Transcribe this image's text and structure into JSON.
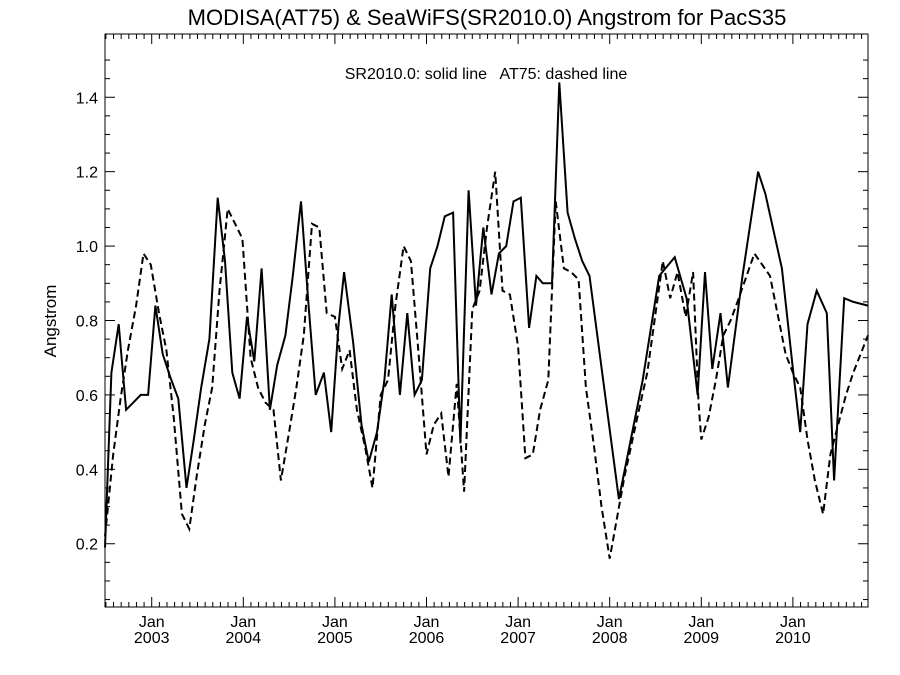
{
  "chart_data": {
    "type": "line",
    "title": "MODISA(AT75) & SeaWiFS(SR2010.0)  Angstrom for PacS35",
    "ylabel": "Angstrom",
    "xlabel": "",
    "annotation": "SR2010.0: solid line   AT75: dashed line",
    "ylim": [
      0.03,
      1.57
    ],
    "xlim": [
      2002.49,
      2010.82
    ],
    "yticks": [
      0.2,
      0.4,
      0.6,
      0.8,
      1.0,
      1.2,
      1.4
    ],
    "ytick_labels": [
      "0.2",
      "0.4",
      "0.6",
      "0.8",
      "1.0",
      "1.2",
      "1.4"
    ],
    "xticks": [
      {
        "x": 2003.0,
        "top": "Jan",
        "bottom": "2003"
      },
      {
        "x": 2004.0,
        "top": "Jan",
        "bottom": "2004"
      },
      {
        "x": 2005.0,
        "top": "Jan",
        "bottom": "2005"
      },
      {
        "x": 2006.0,
        "top": "Jan",
        "bottom": "2006"
      },
      {
        "x": 2007.0,
        "top": "Jan",
        "bottom": "2007"
      },
      {
        "x": 2008.0,
        "top": "Jan",
        "bottom": "2008"
      },
      {
        "x": 2009.0,
        "top": "Jan",
        "bottom": "2009"
      },
      {
        "x": 2010.0,
        "top": "Jan",
        "bottom": "2010"
      }
    ],
    "grid": false,
    "series": [
      {
        "name": "SR2010.0",
        "style": "solid",
        "color": "#000000",
        "x": [
          2002.49,
          2002.56,
          2002.64,
          2002.72,
          2002.8,
          2002.88,
          2002.96,
          2003.04,
          2003.12,
          2003.2,
          2003.29,
          2003.38,
          2003.46,
          2003.54,
          2003.63,
          2003.72,
          2003.8,
          2003.88,
          2003.96,
          2004.04,
          2004.12,
          2004.2,
          2004.29,
          2004.37,
          2004.46,
          2004.54,
          2004.63,
          2004.71,
          2004.79,
          2004.88,
          2004.96,
          2005.04,
          2005.1,
          2005.2,
          2005.29,
          2005.37,
          2005.46,
          2005.54,
          2005.62,
          2005.71,
          2005.79,
          2005.87,
          2005.95,
          2006.04,
          2006.12,
          2006.2,
          2006.29,
          2006.37,
          2006.46,
          2006.54,
          2006.62,
          2006.71,
          2006.79,
          2006.87,
          2006.95,
          2007.03,
          2007.12,
          2007.2,
          2007.27,
          2007.37,
          2007.45,
          2007.54,
          2007.62,
          2007.7,
          2007.78,
          2007.95,
          2008.1,
          2008.36,
          2008.54,
          2008.71,
          2008.84,
          2008.96,
          2009.04,
          2009.12,
          2009.21,
          2009.29,
          2009.45,
          2009.62,
          2009.7,
          2009.88,
          2010.0,
          2010.08,
          2010.16,
          2010.26,
          2010.37,
          2010.45,
          2010.56,
          2010.66,
          2010.82
        ],
        "y": [
          0.19,
          0.66,
          0.79,
          0.56,
          0.58,
          0.6,
          0.6,
          0.84,
          0.71,
          0.65,
          0.59,
          0.35,
          0.48,
          0.62,
          0.75,
          1.13,
          0.96,
          0.66,
          0.59,
          0.81,
          0.69,
          0.94,
          0.56,
          0.68,
          0.76,
          0.92,
          1.12,
          0.85,
          0.6,
          0.66,
          0.5,
          0.79,
          0.93,
          0.74,
          0.52,
          0.42,
          0.5,
          0.64,
          0.87,
          0.6,
          0.82,
          0.6,
          0.64,
          0.94,
          1.0,
          1.08,
          1.09,
          0.47,
          1.15,
          0.84,
          1.05,
          0.87,
          0.98,
          1.0,
          1.12,
          1.13,
          0.78,
          0.92,
          0.9,
          0.9,
          1.44,
          1.09,
          1.02,
          0.96,
          0.92,
          0.6,
          0.32,
          0.64,
          0.92,
          0.97,
          0.86,
          0.6,
          0.93,
          0.67,
          0.82,
          0.62,
          0.92,
          1.2,
          1.14,
          0.94,
          0.67,
          0.5,
          0.79,
          0.88,
          0.82,
          0.37,
          0.86,
          0.85,
          0.84
        ]
      },
      {
        "name": "AT75",
        "style": "dashed",
        "color": "#000000",
        "x": [
          2002.49,
          2002.58,
          2002.66,
          2002.74,
          2002.83,
          2002.91,
          2002.99,
          2003.08,
          2003.16,
          2003.24,
          2003.33,
          2003.41,
          2003.49,
          2003.58,
          2003.66,
          2003.74,
          2003.83,
          2003.91,
          2003.99,
          2004.08,
          2004.16,
          2004.24,
          2004.33,
          2004.41,
          2004.5,
          2004.58,
          2004.66,
          2004.75,
          2004.83,
          2004.91,
          2005.0,
          2005.08,
          2005.16,
          2005.24,
          2005.33,
          2005.41,
          2005.5,
          2005.58,
          2005.66,
          2005.75,
          2005.83,
          2005.91,
          2006.0,
          2006.08,
          2006.16,
          2006.24,
          2006.33,
          2006.41,
          2006.5,
          2006.58,
          2006.66,
          2006.75,
          2006.83,
          2006.91,
          2007.0,
          2007.08,
          2007.16,
          2007.24,
          2007.33,
          2007.41,
          2007.5,
          2007.58,
          2007.66,
          2007.74,
          2007.83,
          2007.91,
          2008.0,
          2008.16,
          2008.32,
          2008.41,
          2008.58,
          2008.66,
          2008.74,
          2008.83,
          2008.91,
          2008.97,
          2009.0,
          2009.08,
          2009.16,
          2009.24,
          2009.32,
          2009.41,
          2009.58,
          2009.75,
          2009.92,
          2010.0,
          2010.08,
          2010.16,
          2010.24,
          2010.33,
          2010.41,
          2010.58,
          2010.66,
          2010.82
        ],
        "y": [
          0.22,
          0.44,
          0.59,
          0.72,
          0.84,
          0.98,
          0.95,
          0.82,
          0.72,
          0.54,
          0.28,
          0.24,
          0.38,
          0.52,
          0.62,
          0.88,
          1.1,
          1.06,
          1.02,
          0.7,
          0.62,
          0.58,
          0.56,
          0.37,
          0.5,
          0.62,
          0.76,
          1.06,
          1.05,
          0.82,
          0.81,
          0.67,
          0.72,
          0.56,
          0.46,
          0.35,
          0.6,
          0.64,
          0.84,
          1.0,
          0.96,
          0.72,
          0.44,
          0.52,
          0.55,
          0.38,
          0.63,
          0.34,
          0.83,
          0.88,
          1.05,
          1.2,
          0.88,
          0.87,
          0.73,
          0.43,
          0.44,
          0.56,
          0.64,
          1.12,
          0.94,
          0.93,
          0.91,
          0.62,
          0.46,
          0.3,
          0.16,
          0.38,
          0.56,
          0.66,
          0.96,
          0.86,
          0.93,
          0.81,
          0.93,
          0.58,
          0.48,
          0.54,
          0.64,
          0.76,
          0.8,
          0.86,
          0.98,
          0.92,
          0.71,
          0.66,
          0.62,
          0.48,
          0.37,
          0.28,
          0.44,
          0.6,
          0.66,
          0.76
        ]
      }
    ]
  }
}
